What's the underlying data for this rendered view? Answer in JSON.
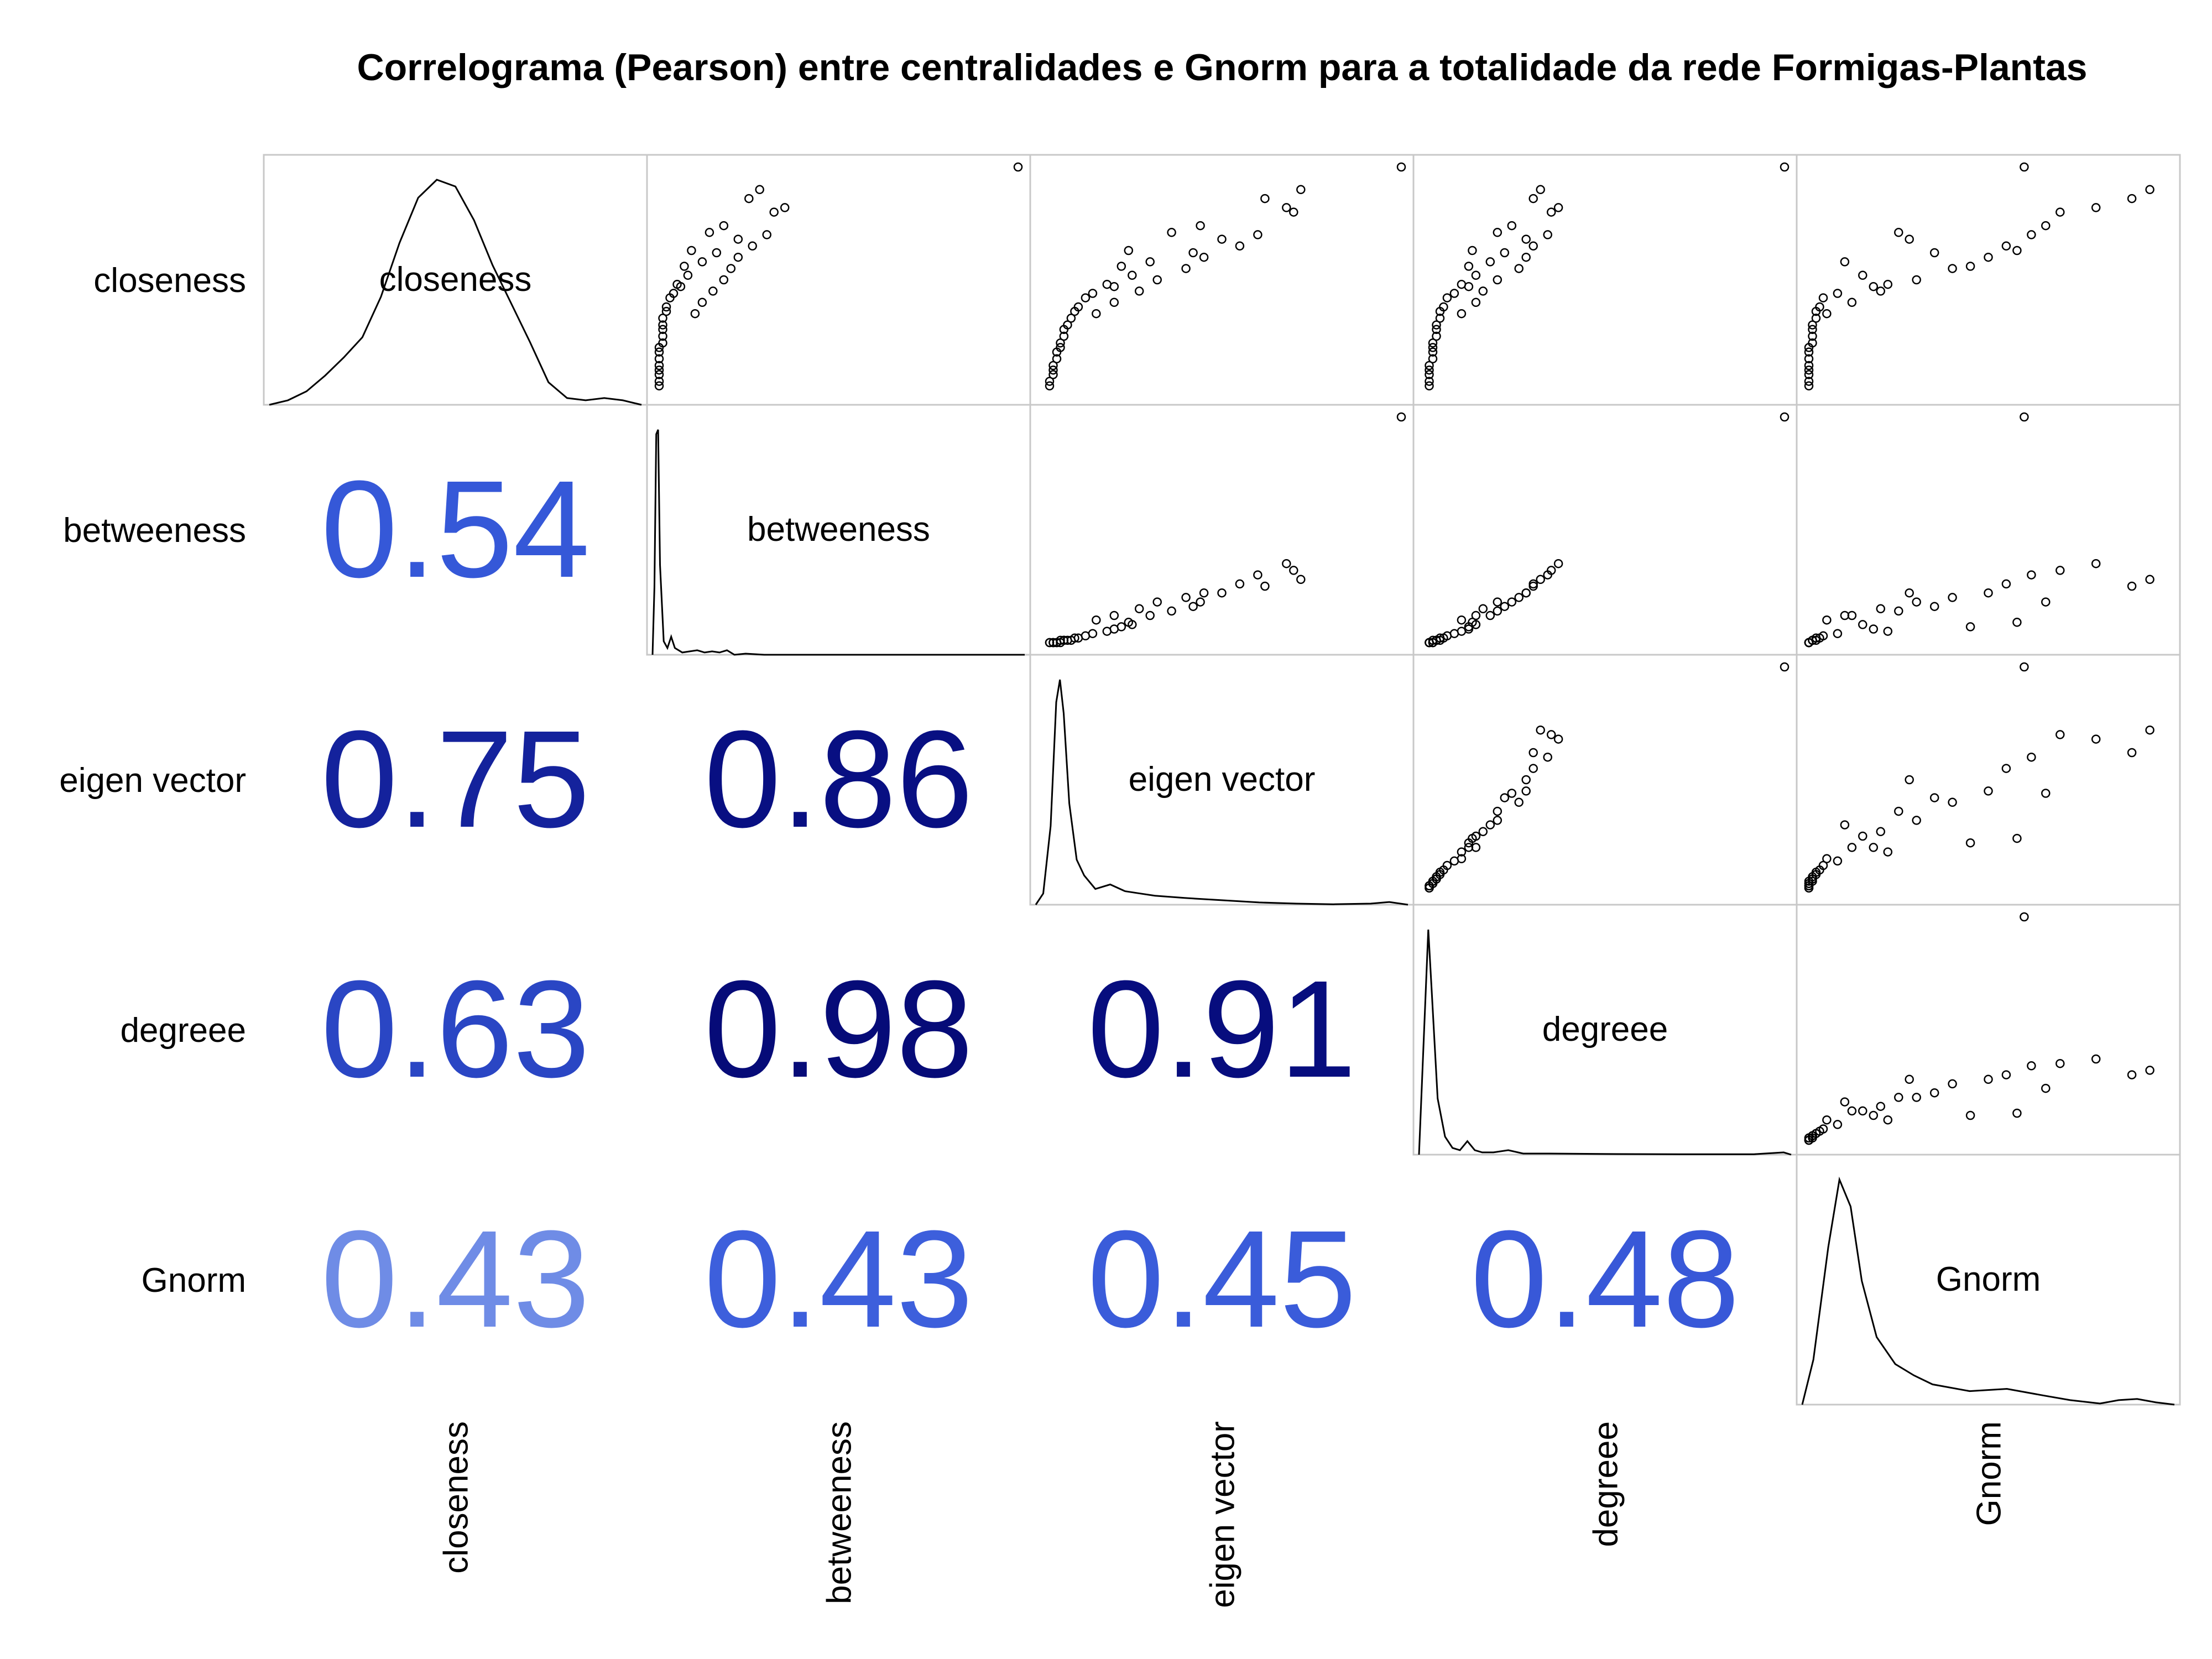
{
  "chart_data": {
    "type": "scatter",
    "title": "Correlograma (Pearson) entre centralidades e Gnorm para a totalidade da rede Formigas-Plantas",
    "variables": [
      "closeness",
      "betweeness",
      "eigen vector",
      "degreee",
      "Gnorm"
    ],
    "layout": "scatterplot-matrix",
    "upper_panels": "scatter",
    "diagonal_panels": "density",
    "lower_panels": "correlation-coefficient",
    "grid": false,
    "colors": {
      "strong": "#0a0f85",
      "medium": "#2040c0",
      "weak": "#6f8ce6",
      "panel_border": "#c8c8c8",
      "line": "#000000"
    },
    "correlations": [
      {
        "row": "betweeness",
        "col": "closeness",
        "value": 0.54,
        "color": "#3558d8"
      },
      {
        "row": "eigen vector",
        "col": "closeness",
        "value": 0.75,
        "color": "#14229c"
      },
      {
        "row": "eigen vector",
        "col": "betweeness",
        "value": 0.86,
        "color": "#080f82"
      },
      {
        "row": "degreee",
        "col": "closeness",
        "value": 0.63,
        "color": "#2a46c4"
      },
      {
        "row": "degreee",
        "col": "betweeness",
        "value": 0.98,
        "color": "#060b78"
      },
      {
        "row": "degreee",
        "col": "eigen vector",
        "value": 0.91,
        "color": "#070d7e"
      },
      {
        "row": "Gnorm",
        "col": "closeness",
        "value": 0.43,
        "color": "#6f8ce6"
      },
      {
        "row": "Gnorm",
        "col": "betweeness",
        "value": 0.43,
        "color": "#3d5fdc"
      },
      {
        "row": "Gnorm",
        "col": "eigen vector",
        "value": 0.45,
        "color": "#3a5cda"
      },
      {
        "row": "Gnorm",
        "col": "degreee",
        "value": 0.48,
        "color": "#3858d8"
      }
    ],
    "densities": {
      "closeness": [
        [
          0,
          0.0
        ],
        [
          0.05,
          0.02
        ],
        [
          0.1,
          0.06
        ],
        [
          0.15,
          0.13
        ],
        [
          0.2,
          0.21
        ],
        [
          0.25,
          0.3
        ],
        [
          0.3,
          0.48
        ],
        [
          0.35,
          0.72
        ],
        [
          0.4,
          0.92
        ],
        [
          0.45,
          1.0
        ],
        [
          0.5,
          0.97
        ],
        [
          0.55,
          0.82
        ],
        [
          0.6,
          0.62
        ],
        [
          0.65,
          0.45
        ],
        [
          0.7,
          0.28
        ],
        [
          0.75,
          0.1
        ],
        [
          0.8,
          0.03
        ],
        [
          0.85,
          0.02
        ],
        [
          0.9,
          0.03
        ],
        [
          0.95,
          0.02
        ],
        [
          1,
          0.0
        ]
      ],
      "betweeness": [
        [
          0,
          0.0
        ],
        [
          0.005,
          0.3
        ],
        [
          0.01,
          0.98
        ],
        [
          0.015,
          1.0
        ],
        [
          0.02,
          0.4
        ],
        [
          0.03,
          0.06
        ],
        [
          0.04,
          0.03
        ],
        [
          0.05,
          0.08
        ],
        [
          0.06,
          0.03
        ],
        [
          0.08,
          0.01
        ],
        [
          0.1,
          0.015
        ],
        [
          0.12,
          0.02
        ],
        [
          0.14,
          0.01
        ],
        [
          0.16,
          0.015
        ],
        [
          0.18,
          0.01
        ],
        [
          0.2,
          0.02
        ],
        [
          0.22,
          0.0
        ],
        [
          0.25,
          0.005
        ],
        [
          0.3,
          0.0
        ],
        [
          1,
          0.0
        ]
      ],
      "eigen vector": [
        [
          0,
          0.0
        ],
        [
          0.02,
          0.05
        ],
        [
          0.04,
          0.35
        ],
        [
          0.055,
          0.9
        ],
        [
          0.065,
          1.0
        ],
        [
          0.075,
          0.85
        ],
        [
          0.09,
          0.45
        ],
        [
          0.11,
          0.2
        ],
        [
          0.13,
          0.13
        ],
        [
          0.16,
          0.07
        ],
        [
          0.2,
          0.09
        ],
        [
          0.24,
          0.06
        ],
        [
          0.28,
          0.05
        ],
        [
          0.32,
          0.04
        ],
        [
          0.4,
          0.03
        ],
        [
          0.5,
          0.02
        ],
        [
          0.6,
          0.01
        ],
        [
          0.7,
          0.005
        ],
        [
          0.8,
          0.002
        ],
        [
          0.9,
          0.005
        ],
        [
          0.95,
          0.012
        ],
        [
          1,
          0.0
        ]
      ],
      "degreee": [
        [
          0,
          0.0
        ],
        [
          0.01,
          0.4
        ],
        [
          0.025,
          1.0
        ],
        [
          0.035,
          0.7
        ],
        [
          0.05,
          0.25
        ],
        [
          0.07,
          0.08
        ],
        [
          0.09,
          0.03
        ],
        [
          0.11,
          0.02
        ],
        [
          0.13,
          0.06
        ],
        [
          0.15,
          0.02
        ],
        [
          0.17,
          0.01
        ],
        [
          0.2,
          0.01
        ],
        [
          0.24,
          0.02
        ],
        [
          0.28,
          0.005
        ],
        [
          0.35,
          0.005
        ],
        [
          0.5,
          0.003
        ],
        [
          0.7,
          0.002
        ],
        [
          0.9,
          0.002
        ],
        [
          0.98,
          0.01
        ],
        [
          1,
          0.0
        ]
      ],
      "Gnorm": [
        [
          0,
          0.0
        ],
        [
          0.03,
          0.2
        ],
        [
          0.07,
          0.7
        ],
        [
          0.1,
          1.0
        ],
        [
          0.13,
          0.88
        ],
        [
          0.16,
          0.55
        ],
        [
          0.2,
          0.3
        ],
        [
          0.25,
          0.18
        ],
        [
          0.3,
          0.13
        ],
        [
          0.35,
          0.09
        ],
        [
          0.45,
          0.06
        ],
        [
          0.55,
          0.07
        ],
        [
          0.65,
          0.04
        ],
        [
          0.72,
          0.02
        ],
        [
          0.8,
          0.005
        ],
        [
          0.85,
          0.02
        ],
        [
          0.9,
          0.025
        ],
        [
          0.95,
          0.01
        ],
        [
          1,
          0.0
        ]
      ]
    },
    "scatter_points": [
      {
        "closeness": 0.35,
        "betweeness": 0.1,
        "eigen vector": 0.15,
        "degreee": 0.1,
        "Gnorm": 0.05
      },
      {
        "closeness": 0.4,
        "betweeness": 0.12,
        "eigen vector": 0.2,
        "degreee": 0.14,
        "Gnorm": 0.12
      },
      {
        "closeness": 0.45,
        "betweeness": 0.15,
        "eigen vector": 0.27,
        "degreee": 0.16,
        "Gnorm": 0.2
      },
      {
        "closeness": 0.5,
        "betweeness": 0.18,
        "eigen vector": 0.32,
        "degreee": 0.2,
        "Gnorm": 0.3
      },
      {
        "closeness": 0.55,
        "betweeness": 0.2,
        "eigen vector": 0.4,
        "degreee": 0.26,
        "Gnorm": 0.4
      },
      {
        "closeness": 0.6,
        "betweeness": 0.22,
        "eigen vector": 0.45,
        "degreee": 0.28,
        "Gnorm": 0.5
      },
      {
        "closeness": 0.65,
        "betweeness": 0.26,
        "eigen vector": 0.55,
        "degreee": 0.3,
        "Gnorm": 0.55
      },
      {
        "closeness": 0.7,
        "betweeness": 0.3,
        "eigen vector": 0.6,
        "degreee": 0.34,
        "Gnorm": 0.62
      },
      {
        "closeness": 0.8,
        "betweeness": 0.32,
        "eigen vector": 0.7,
        "degreee": 0.35,
        "Gnorm": 0.7
      },
      {
        "closeness": 0.82,
        "betweeness": 0.35,
        "eigen vector": 0.68,
        "degreee": 0.37,
        "Gnorm": 0.8
      },
      {
        "closeness": 0.68,
        "betweeness": 0.22,
        "eigen vector": 0.5,
        "degreee": 0.28,
        "Gnorm": 0.28
      },
      {
        "closeness": 0.62,
        "betweeness": 0.16,
        "eigen vector": 0.42,
        "degreee": 0.22,
        "Gnorm": 0.35
      },
      {
        "closeness": 0.58,
        "betweeness": 0.12,
        "eigen vector": 0.3,
        "degreee": 0.18,
        "Gnorm": 0.1
      },
      {
        "closeness": 0.52,
        "betweeness": 0.08,
        "eigen vector": 0.25,
        "degreee": 0.14,
        "Gnorm": 0.15
      },
      {
        "closeness": 0.48,
        "betweeness": 0.05,
        "eigen vector": 0.18,
        "degreee": 0.1,
        "Gnorm": 0.22
      },
      {
        "closeness": 0.44,
        "betweeness": 0.04,
        "eigen vector": 0.14,
        "degreee": 0.08,
        "Gnorm": 0.08
      },
      {
        "closeness": 0.42,
        "betweeness": 0.03,
        "eigen vector": 0.12,
        "degreee": 0.06,
        "Gnorm": 0.04
      },
      {
        "closeness": 0.38,
        "betweeness": 0.02,
        "eigen vector": 0.1,
        "degreee": 0.05,
        "Gnorm": 0.03
      },
      {
        "closeness": 0.36,
        "betweeness": 0.02,
        "eigen vector": 0.09,
        "degreee": 0.04,
        "Gnorm": 0.02
      },
      {
        "closeness": 0.33,
        "betweeness": 0.01,
        "eigen vector": 0.08,
        "degreee": 0.04,
        "Gnorm": 0.02
      },
      {
        "closeness": 0.3,
        "betweeness": 0.01,
        "eigen vector": 0.07,
        "degreee": 0.03,
        "Gnorm": 0.01
      },
      {
        "closeness": 0.28,
        "betweeness": 0.01,
        "eigen vector": 0.06,
        "degreee": 0.03,
        "Gnorm": 0.01
      },
      {
        "closeness": 0.25,
        "betweeness": 0.01,
        "eigen vector": 0.06,
        "degreee": 0.03,
        "Gnorm": 0.01
      },
      {
        "closeness": 0.22,
        "betweeness": 0.01,
        "eigen vector": 0.05,
        "degreee": 0.02,
        "Gnorm": 0.01
      },
      {
        "closeness": 0.2,
        "betweeness": 0.0,
        "eigen vector": 0.05,
        "degreee": 0.02,
        "Gnorm": 0.0
      },
      {
        "closeness": 0.18,
        "betweeness": 0.0,
        "eigen vector": 0.04,
        "degreee": 0.02,
        "Gnorm": 0.0
      },
      {
        "closeness": 0.15,
        "betweeness": 0.0,
        "eigen vector": 0.04,
        "degreee": 0.02,
        "Gnorm": 0.0
      },
      {
        "closeness": 0.12,
        "betweeness": 0.0,
        "eigen vector": 0.03,
        "degreee": 0.01,
        "Gnorm": 0.0
      },
      {
        "closeness": 0.1,
        "betweeness": 0.0,
        "eigen vector": 0.03,
        "degreee": 0.01,
        "Gnorm": 0.0
      },
      {
        "closeness": 0.08,
        "betweeness": 0.0,
        "eigen vector": 0.03,
        "degreee": 0.01,
        "Gnorm": 0.0
      },
      {
        "closeness": 0.05,
        "betweeness": 0.0,
        "eigen vector": 0.02,
        "degreee": 0.01,
        "Gnorm": 0.0
      },
      {
        "closeness": 0.03,
        "betweeness": 0.0,
        "eigen vector": 0.02,
        "degreee": 0.01,
        "Gnorm": 0.0
      },
      {
        "closeness": 0.47,
        "betweeness": 0.06,
        "eigen vector": 0.2,
        "degreee": 0.12,
        "Gnorm": 0.18
      },
      {
        "closeness": 0.56,
        "betweeness": 0.07,
        "eigen vector": 0.22,
        "degreee": 0.12,
        "Gnorm": 0.45
      },
      {
        "closeness": 0.63,
        "betweeness": 0.09,
        "eigen vector": 0.24,
        "degreee": 0.13,
        "Gnorm": 0.58
      },
      {
        "closeness": 0.71,
        "betweeness": 0.14,
        "eigen vector": 0.36,
        "degreee": 0.2,
        "Gnorm": 0.25
      },
      {
        "closeness": 0.74,
        "betweeness": 0.18,
        "eigen vector": 0.44,
        "degreee": 0.24,
        "Gnorm": 0.66
      },
      {
        "closeness": 0.86,
        "betweeness": 0.25,
        "eigen vector": 0.62,
        "degreee": 0.3,
        "Gnorm": 0.9
      },
      {
        "closeness": 0.9,
        "betweeness": 0.28,
        "eigen vector": 0.72,
        "degreee": 0.32,
        "Gnorm": 0.95
      },
      {
        "closeness": 1.0,
        "betweeness": 1.0,
        "eigen vector": 1.0,
        "degreee": 1.0,
        "Gnorm": 0.6
      }
    ]
  }
}
